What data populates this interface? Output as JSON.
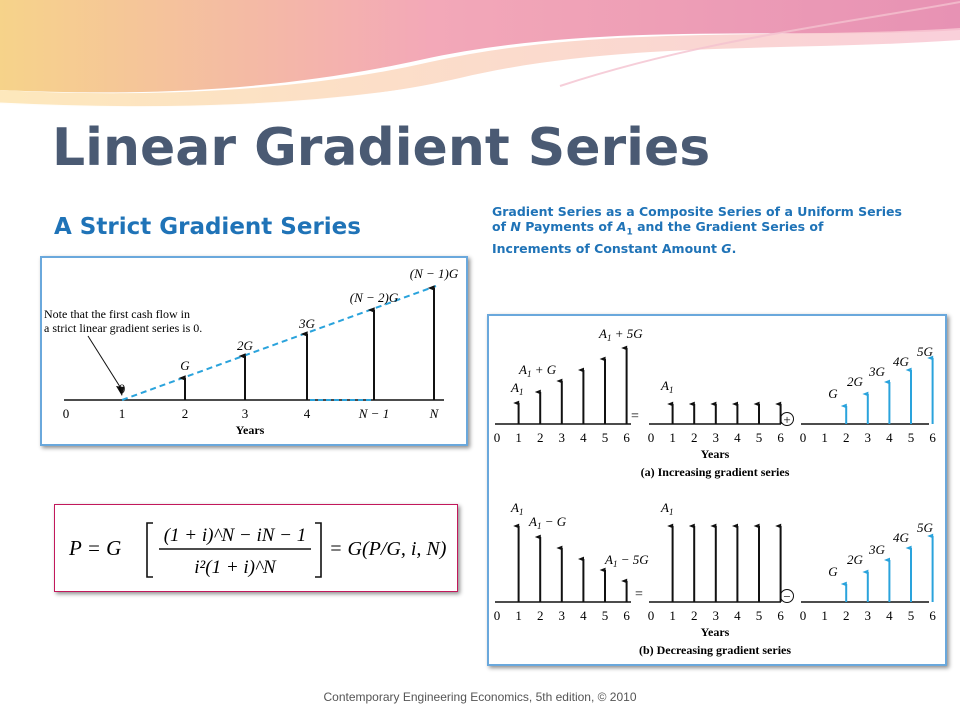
{
  "slide": {
    "title": "Linear Gradient Series",
    "subtitle": "A Strict Gradient Series",
    "caption_line1": "Gradient Series as a Composite Series of a Uniform Series",
    "caption_line2_pre": "of ",
    "caption_N": "N",
    "caption_line2_mid": " Payments of ",
    "caption_A": "A",
    "caption_A_sub": "1",
    "caption_line2_post": " and the Gradient Series of",
    "caption_line3_pre": "Increments of Constant Amount ",
    "caption_G": "G",
    "caption_line3_post": ".",
    "footer": "Contemporary Engineering Economics, 5th edition, © 2010"
  },
  "strict_diagram": {
    "note_line1": "Note that the first cash flow in",
    "note_line2": "a strict linear gradient series is 0.",
    "ticks": [
      "0",
      "1",
      "2",
      "3",
      "4",
      "N − 1",
      "N"
    ],
    "arrow_labels": [
      "0",
      "G",
      "2G",
      "3G",
      "(N − 2)G",
      "(N − 1)G"
    ],
    "xlabel": "Years"
  },
  "formula": {
    "lhs": "P = G",
    "numerator": "(1 + i)^N − iN − 1",
    "denominator": "i²(1 + i)^N",
    "rhs": "= G(P/G, i, N)"
  },
  "composite_diagram": {
    "ticks": [
      "0",
      "1",
      "2",
      "3",
      "4",
      "5",
      "6"
    ],
    "xlabel": "Years",
    "a_caption": "(a) Increasing gradient series",
    "b_caption": "(b) Decreasing gradient series",
    "a_labels": [
      "A1",
      "A1 + G",
      "A1 + 5G"
    ],
    "uniform_label": "A1",
    "gradient_labels": [
      "G",
      "2G",
      "3G",
      "4G",
      "5G"
    ],
    "b_labels": [
      "A1",
      "A1 − G",
      "A1 − 5G"
    ],
    "equals": "=",
    "plus": "+",
    "minus": "−",
    "increasing_amounts": [
      1,
      2,
      3,
      4,
      5,
      6
    ],
    "decreasing_amounts": [
      6,
      5,
      4,
      3,
      2,
      1
    ],
    "gradient_amounts": [
      0,
      1,
      2,
      3,
      4,
      5
    ],
    "colors": {
      "gradient": "#2aa3dc",
      "dashed_line": "#2aa3dc",
      "arrow": "#111111"
    }
  }
}
